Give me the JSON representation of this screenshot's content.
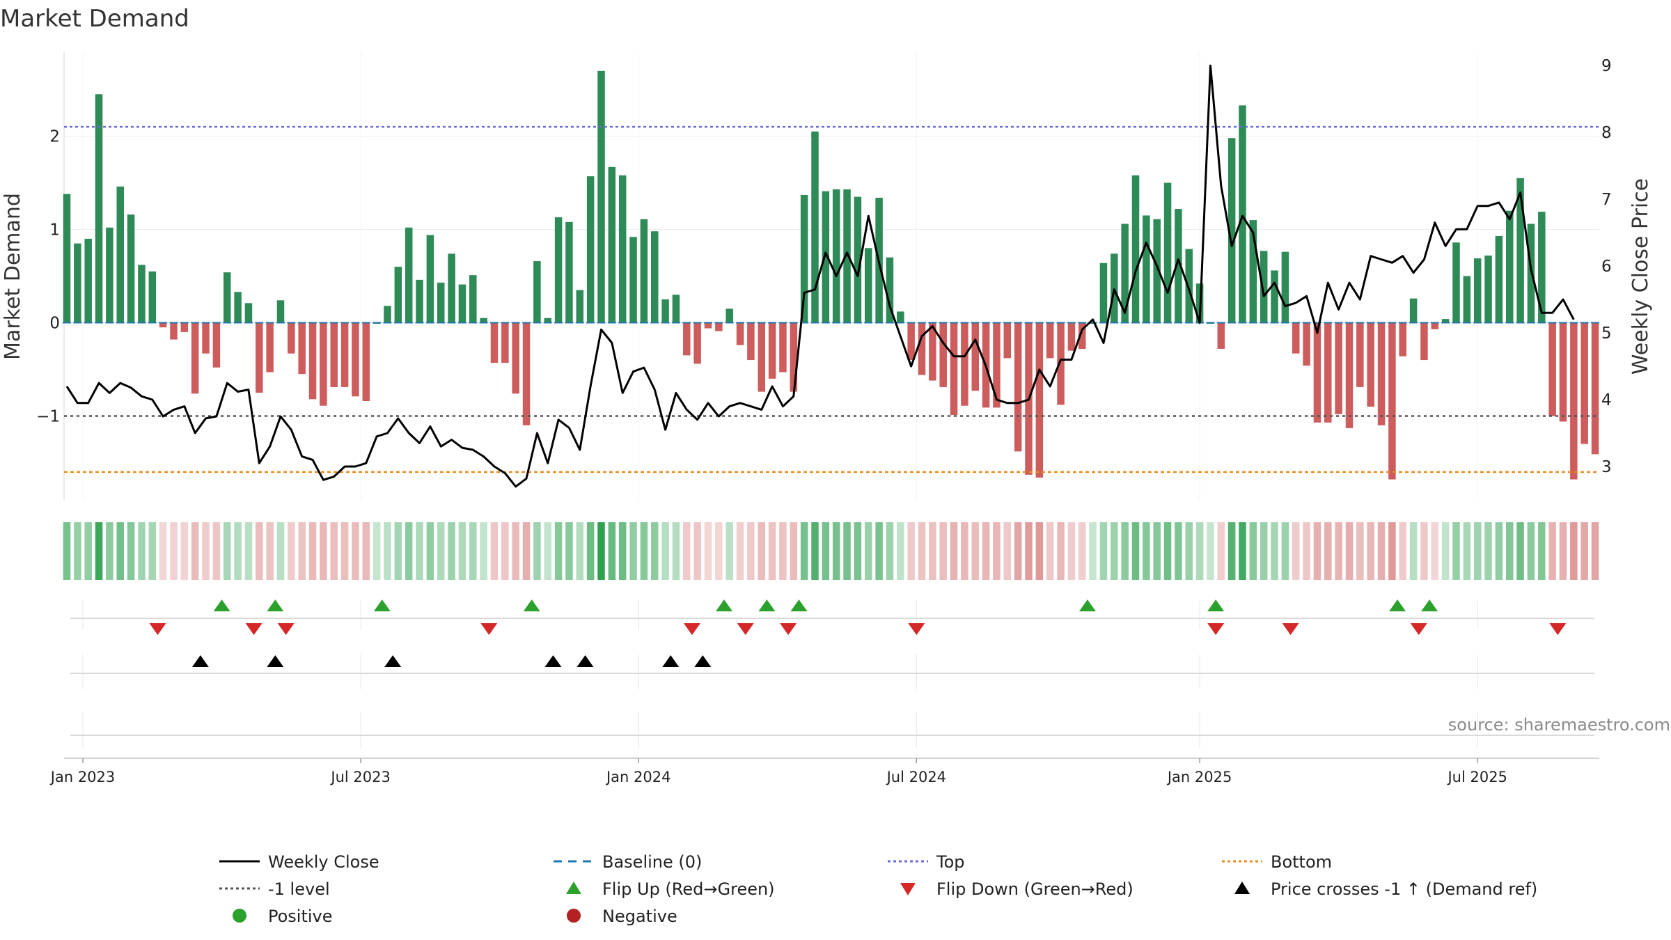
{
  "chart_data": {
    "type": "bar+line",
    "title": "Market Demand",
    "ylabel_left": "Market Demand",
    "ylabel_right": "Weekly Close Price",
    "source": "source: sharemaestro.com",
    "ylim_left": [
      -1.9,
      2.9
    ],
    "ylim_right": [
      2.5,
      9.2
    ],
    "yticks_left": [
      {
        "v": 2,
        "label": "2"
      },
      {
        "v": 1,
        "label": "1"
      },
      {
        "v": 0,
        "label": "0"
      },
      {
        "v": -1,
        "label": "−1"
      }
    ],
    "yticks_right": [
      {
        "v": 9,
        "label": "9"
      },
      {
        "v": 8,
        "label": "8"
      },
      {
        "v": 7,
        "label": "7"
      },
      {
        "v": 6,
        "label": "6"
      },
      {
        "v": 5,
        "label": "5"
      },
      {
        "v": 4,
        "label": "4"
      },
      {
        "v": 3,
        "label": "3"
      }
    ],
    "x_ticks": [
      {
        "week": 1.5,
        "label": "Jan 2023"
      },
      {
        "week": 27.5,
        "label": "Jul 2023"
      },
      {
        "week": 53.5,
        "label": "Jan 2024"
      },
      {
        "week": 79.5,
        "label": "Jul 2024"
      },
      {
        "week": 106,
        "label": "Jan 2025"
      },
      {
        "week": 132,
        "label": "Jul 2025"
      }
    ],
    "levels": {
      "top": 2.1,
      "bottom": -1.6,
      "minus_one": -1,
      "baseline": 0
    },
    "demand": [
      1.38,
      0.85,
      0.9,
      2.45,
      1.02,
      1.46,
      1.16,
      0.62,
      0.55,
      -0.05,
      -0.18,
      -0.1,
      -0.76,
      -0.33,
      -0.48,
      0.54,
      0.33,
      0.21,
      -0.75,
      -0.53,
      0.24,
      -0.33,
      -0.55,
      -0.82,
      -0.89,
      -0.69,
      -0.69,
      -0.79,
      -0.84,
      0,
      0.18,
      0.6,
      1.02,
      0.46,
      0.94,
      0.43,
      0.74,
      0.41,
      0.51,
      0.05,
      -0.43,
      -0.43,
      -0.76,
      -1.1,
      0.66,
      0.05,
      1.13,
      1.08,
      0.35,
      1.57,
      2.7,
      1.67,
      1.58,
      0.92,
      1.11,
      0.98,
      0.25,
      0.3,
      -0.35,
      -0.44,
      -0.06,
      -0.09,
      0.15,
      -0.24,
      -0.4,
      -0.74,
      -0.6,
      -0.53,
      -0.74,
      1.37,
      2.05,
      1.41,
      1.43,
      1.43,
      1.35,
      0.8,
      1.34,
      0.7,
      0.12,
      -0.4,
      -0.56,
      -0.62,
      -0.69,
      -0.99,
      -0.89,
      -0.73,
      -0.91,
      -0.91,
      -0.38,
      -1.38,
      -1.63,
      -1.66,
      -0.38,
      -0.88,
      -0.3,
      -0.28,
      0,
      0.64,
      0.74,
      1.06,
      1.58,
      1.15,
      1.11,
      1.5,
      1.22,
      0.79,
      0.42,
      0,
      -0.28,
      1.98,
      2.33,
      1.1,
      0.77,
      0.56,
      0.76,
      -0.33,
      -0.46,
      -1.07,
      -1.07,
      -0.98,
      -1.13,
      -0.69,
      -0.9,
      -1.1,
      -1.68,
      -0.36,
      0.26,
      -0.4,
      -0.07,
      0.04,
      0.86,
      0.5,
      0.69,
      0.72,
      0.93,
      1.2,
      1.55,
      1.06,
      1.19,
      -1,
      -1.06,
      -1.68,
      -1.3,
      -1.41
    ],
    "close": [
      4.2,
      3.95,
      3.95,
      4.25,
      4.1,
      4.25,
      4.18,
      4.05,
      4,
      3.75,
      3.85,
      3.9,
      3.5,
      3.72,
      3.75,
      4.25,
      4.12,
      4.15,
      3.05,
      3.3,
      3.75,
      3.55,
      3.15,
      3.1,
      2.8,
      2.85,
      3,
      3,
      3.05,
      3.45,
      3.5,
      3.72,
      3.5,
      3.35,
      3.6,
      3.3,
      3.4,
      3.28,
      3.25,
      3.15,
      3,
      2.9,
      2.7,
      2.82,
      3.5,
      3.05,
      3.7,
      3.58,
      3.25,
      4.2,
      5.05,
      4.85,
      4.1,
      4.42,
      4.48,
      4.15,
      3.55,
      4.1,
      3.85,
      3.7,
      3.95,
      3.75,
      3.9,
      3.95,
      3.9,
      3.85,
      4.2,
      3.9,
      4.05,
      5.6,
      5.65,
      6.2,
      5.85,
      6.2,
      5.85,
      6.75,
      6.05,
      5.4,
      4.95,
      4.5,
      4.95,
      5.1,
      4.85,
      4.65,
      4.65,
      4.9,
      4.5,
      4,
      3.95,
      3.95,
      4,
      4.45,
      4.2,
      4.6,
      4.6,
      5.05,
      5.2,
      4.85,
      5.65,
      5.3,
      5.92,
      6.35,
      6,
      5.6,
      6.1,
      5.65,
      5.15,
      9,
      7.2,
      6.3,
      6.75,
      6.5,
      5.55,
      5.75,
      5.4,
      5.45,
      5.55,
      5,
      5.75,
      5.35,
      5.75,
      5.5,
      6.15,
      6.1,
      6.05,
      6.15,
      5.9,
      6.1,
      6.65,
      6.3,
      6.55,
      6.55,
      6.9,
      6.9,
      6.95,
      6.7,
      7.1,
      5.95,
      5.3,
      5.3,
      5.5,
      5.2
    ],
    "flip_up_weeks": [
      14.5,
      19.5,
      29.5,
      43.5,
      61.5,
      65.5,
      68.5,
      95.5,
      107.5,
      124.5,
      127.5
    ],
    "flip_down_weeks": [
      8.5,
      17.5,
      20.5,
      39.5,
      58.5,
      63.5,
      67.5,
      79.5,
      107.5,
      114.5,
      126.5,
      139.5
    ],
    "cross_weeks": [
      12.5,
      19.5,
      30.5,
      45.5,
      48.5,
      56.5,
      59.5
    ],
    "legend": [
      {
        "label": "Weekly Close",
        "marker": "line",
        "color": "#000000"
      },
      {
        "label": "Baseline (0)",
        "marker": "dash",
        "color": "#1f77b4"
      },
      {
        "label": "Top",
        "marker": "dots",
        "color": "#6a6ad4"
      },
      {
        "label": "Bottom",
        "marker": "dots",
        "color": "#ee8a1c"
      },
      {
        "label": "-1 level",
        "marker": "dots",
        "color": "#555555"
      },
      {
        "label": "Flip Up (Red→Green)",
        "marker": "tri-up",
        "color": "#2ca02c"
      },
      {
        "label": "Flip Down (Green→Red)",
        "marker": "tri-down",
        "color": "#d62728"
      },
      {
        "label": "Price crosses -1 ↑ (Demand ref)",
        "marker": "tri-up",
        "color": "#000000"
      },
      {
        "label": "Positive",
        "marker": "circle",
        "color": "#2ca02c"
      },
      {
        "label": "Negative",
        "marker": "circle",
        "color": "#b22222"
      }
    ]
  },
  "colors": {
    "positive_bar": "#2e8b57",
    "negative_bar": "#cd5c5c",
    "grid": "#ececec"
  }
}
